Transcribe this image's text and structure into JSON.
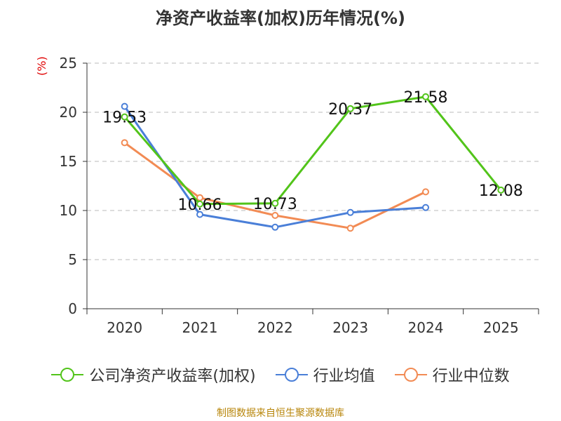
{
  "chart_data": {
    "type": "line",
    "title": "净资产收益率(加权)历年情况(%)",
    "ylabel": "(%)",
    "xlabel": "",
    "categories": [
      "2020",
      "2021",
      "2022",
      "2023",
      "2024",
      "2025"
    ],
    "ylim": [
      0,
      25
    ],
    "yticks": [
      0,
      5,
      10,
      15,
      20,
      25
    ],
    "grid": true,
    "legend_position": "bottom",
    "series": [
      {
        "name": "公司净资产收益率(加权)",
        "color": "#52c41a",
        "values": [
          19.53,
          10.66,
          10.73,
          20.37,
          21.58,
          12.08
        ],
        "labels": [
          "19.53",
          "10.66",
          "10.73",
          "20.37",
          "21.58",
          "12.08"
        ]
      },
      {
        "name": "行业均值",
        "color": "#4a7fd8",
        "values": [
          20.6,
          9.6,
          8.3,
          9.8,
          10.3,
          null
        ]
      },
      {
        "name": "行业中位数",
        "color": "#f28b54",
        "values": [
          16.9,
          11.3,
          9.5,
          8.2,
          11.9,
          null
        ]
      }
    ]
  },
  "source": "制图数据来自恒生聚源数据库"
}
